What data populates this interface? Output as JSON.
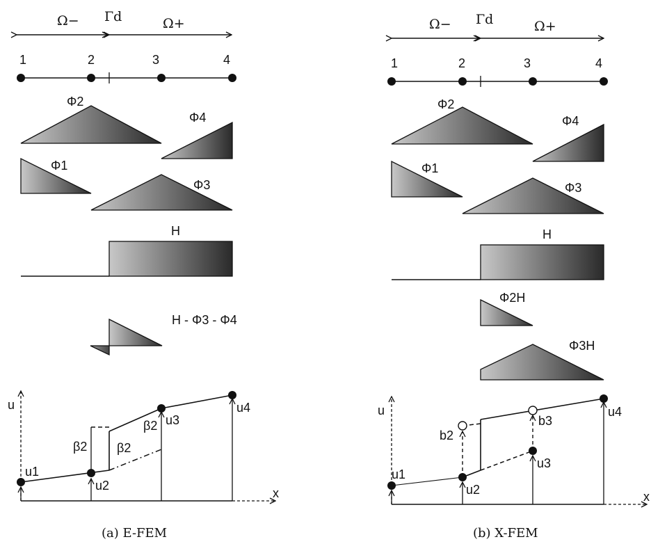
{
  "panel_a": {
    "omega_minus": "Ω−",
    "gamma": "Γd",
    "omega_plus": "Ω+",
    "nodes": [
      "1",
      "2",
      "3",
      "4"
    ],
    "phi_labels": {
      "phi2": "Φ2",
      "phi4": "Φ4",
      "phi1": "Φ1",
      "phi3": "Φ3"
    },
    "heaviside": "H",
    "enriched": "H - Φ3 - Φ4",
    "axis_u": "u",
    "axis_x": "x",
    "u_labels": [
      "u1",
      "u2",
      "u3",
      "u4"
    ],
    "beta": "β2",
    "caption": "(a) E-FEM"
  },
  "panel_b": {
    "omega_minus": "Ω−",
    "gamma": "Γd",
    "omega_plus": "Ω+",
    "nodes": [
      "1",
      "2",
      "3",
      "4"
    ],
    "phi_labels": {
      "phi2": "Φ2",
      "phi4": "Φ4",
      "phi1": "Φ1",
      "phi3": "Φ3"
    },
    "heaviside": "H",
    "phi2h": "Φ2H",
    "phi3h": "Φ3H",
    "axis_u": "u",
    "axis_x": "x",
    "u_labels": [
      "u1",
      "u2",
      "u3",
      "u4"
    ],
    "b_labels": [
      "b2",
      "b3"
    ],
    "caption": "(b) X-FEM"
  },
  "colors": {
    "shape_dark": "#2a2a2a",
    "shape_light": "#c8c8c8",
    "ink": "#111111"
  }
}
